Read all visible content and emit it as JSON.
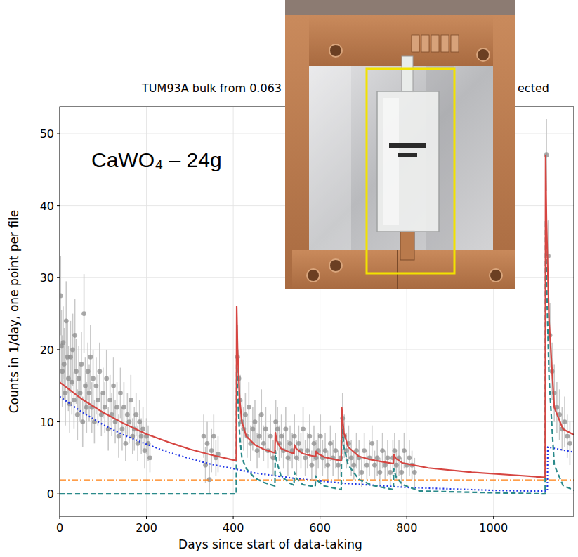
{
  "chart_data": {
    "type": "scatter",
    "title": "TUM93A bulk from 0.063",
    "annotations": [
      "ected",
      "CaWO₄ – 24g"
    ],
    "xlabel": "Days since start of data-taking",
    "ylabel": "Counts in 1/day, one point per file",
    "xlim": [
      0,
      1185
    ],
    "ylim": [
      -3.1,
      53.7
    ],
    "xticks": [
      0,
      200,
      400,
      600,
      800,
      1000
    ],
    "yticks": [
      0,
      10,
      20,
      30,
      40,
      50
    ],
    "grid": true,
    "series": [
      {
        "type": "scatter",
        "color": "#8c8c8c",
        "marker": "circle",
        "x": [
          2,
          4,
          6,
          8,
          10,
          13,
          15,
          18,
          20,
          23,
          25,
          28,
          30,
          33,
          35,
          38,
          41,
          44,
          47,
          50,
          53,
          56,
          59,
          62,
          65,
          68,
          71,
          74,
          77,
          80,
          84,
          88,
          92,
          96,
          100,
          104,
          108,
          112,
          116,
          120,
          124,
          128,
          132,
          136,
          140,
          144,
          148,
          152,
          156,
          160,
          164,
          168,
          172,
          176,
          180,
          184,
          188,
          192,
          196,
          200,
          204,
          208,
          332,
          336,
          340,
          345,
          350,
          355,
          360,
          365,
          410,
          413,
          416,
          420,
          424,
          428,
          432,
          436,
          440,
          445,
          450,
          455,
          460,
          465,
          470,
          475,
          480,
          486,
          492,
          498,
          502,
          506,
          511,
          516,
          521,
          526,
          531,
          536,
          541,
          546,
          551,
          556,
          561,
          566,
          571,
          576,
          581,
          586,
          591,
          596,
          601,
          606,
          612,
          618,
          624,
          630,
          636,
          642,
          648,
          652,
          656,
          661,
          666,
          672,
          678,
          684,
          690,
          696,
          702,
          708,
          714,
          720,
          726,
          732,
          738,
          744,
          750,
          756,
          762,
          768,
          772,
          776,
          782,
          788,
          794,
          800,
          806,
          812,
          818,
          1122,
          1126,
          1130,
          1135,
          1140,
          1146,
          1152,
          1158,
          1164,
          1170,
          1176
        ],
        "values": [
          27.5,
          20.5,
          17,
          21,
          18,
          14,
          24,
          19,
          16,
          12.5,
          19,
          15.5,
          20,
          13,
          22,
          17,
          11,
          16,
          14,
          18,
          10,
          25,
          15,
          12,
          17,
          14,
          19,
          12,
          16,
          10,
          15,
          13,
          17,
          11,
          14,
          12,
          16,
          9,
          13,
          11,
          15,
          10,
          12,
          8,
          14,
          9,
          12,
          7,
          11,
          10,
          13,
          8,
          9,
          11,
          7,
          10,
          8,
          9,
          6,
          8,
          7,
          5,
          8,
          4,
          7,
          2,
          6,
          8,
          5,
          5.5,
          19,
          16,
          13,
          10,
          9,
          11,
          8,
          12,
          7,
          9,
          10,
          6,
          8,
          11,
          7,
          9,
          6,
          8,
          5,
          10,
          9,
          7,
          8,
          6,
          9,
          5,
          7,
          6,
          8,
          5,
          7,
          6,
          9,
          5,
          6,
          8,
          4,
          7,
          5,
          6,
          8,
          5,
          6,
          4,
          7,
          5,
          6,
          4,
          5,
          10.5,
          8,
          6,
          7,
          5,
          4,
          6,
          5,
          3,
          6,
          4,
          5,
          7,
          4,
          5,
          3,
          6,
          4,
          5,
          3,
          5,
          6,
          4,
          5,
          3,
          6,
          4,
          5,
          4,
          3,
          47,
          33,
          22,
          17,
          14,
          12,
          11,
          9,
          10,
          8,
          7
        ],
        "errors": [
          5.5,
          5,
          5,
          5,
          5,
          4.5,
          5.5,
          5,
          4.5,
          4,
          5,
          4.5,
          5,
          4,
          5,
          4.5,
          3.5,
          4.5,
          4,
          4.5,
          3.5,
          5.5,
          4,
          3.5,
          4,
          4,
          4.5,
          3.5,
          4,
          3,
          4,
          3.5,
          4,
          3,
          3.5,
          3.5,
          4,
          3,
          3.5,
          3,
          4,
          3,
          3.5,
          3,
          3.5,
          3,
          3.5,
          2.5,
          3,
          3,
          3.5,
          2.5,
          3,
          3,
          2.5,
          3,
          2.5,
          3,
          2.5,
          2.5,
          2.5,
          2,
          3,
          2.5,
          3,
          2,
          3,
          3,
          2.5,
          2.5,
          4.5,
          4,
          3.5,
          3,
          3,
          3,
          3,
          3.5,
          2.5,
          3,
          3,
          2.5,
          3,
          3.5,
          2.5,
          3,
          2.5,
          3,
          2.5,
          3,
          3,
          2.5,
          3,
          2.5,
          3,
          2.5,
          2.5,
          2.5,
          3,
          2.5,
          2.5,
          2.5,
          3,
          2.5,
          2.5,
          3,
          2,
          2.5,
          2.5,
          2.5,
          3,
          2.5,
          2.5,
          2,
          2.5,
          2.5,
          2.5,
          2,
          2.5,
          3.5,
          3,
          2.5,
          2.5,
          2.5,
          2,
          2.5,
          2.5,
          2,
          2.5,
          2,
          2.5,
          2.5,
          2,
          2.5,
          2,
          2.5,
          2,
          2.5,
          2,
          2.5,
          2.5,
          2,
          2.5,
          2,
          2.5,
          2,
          2.5,
          2,
          2,
          5,
          5,
          4.5,
          4,
          4,
          3.5,
          3.5,
          3,
          3.5,
          3,
          3
        ]
      },
      {
        "type": "line",
        "color": "#1f35e6",
        "line_style": "dotted",
        "x": [
          0,
          50,
          100,
          150,
          200,
          250,
          300,
          350,
          400,
          450,
          500,
          550,
          600,
          650,
          700,
          750,
          800,
          850,
          900,
          950,
          1000,
          1050,
          1100,
          1124,
          1125,
          1150,
          1185
        ],
        "values": [
          13.5,
          11.4,
          9.6,
          8.1,
          6.9,
          5.8,
          4.9,
          4.1,
          3.5,
          2.9,
          2.5,
          2.1,
          1.8,
          1.5,
          1.3,
          1.1,
          0.9,
          0.8,
          0.7,
          0.6,
          0.5,
          0.45,
          0.4,
          0.4,
          6.5,
          6.2,
          5.8
        ]
      },
      {
        "type": "line",
        "color": "#ff7f0e",
        "line_style": "dashdot",
        "x": [
          0,
          1185
        ],
        "values": [
          1.9,
          1.9
        ]
      },
      {
        "type": "line",
        "color": "#2a8a8a",
        "line_style": "dashed",
        "x": [
          0,
          407,
          408,
          410,
          415,
          420,
          430,
          450,
          470,
          496,
          497,
          500,
          510,
          530,
          540,
          541,
          545,
          560,
          589,
          590,
          595,
          610,
          649,
          650,
          655,
          665,
          690,
          720,
          769,
          770,
          775,
          790,
          830,
          1119,
          1120,
          1122,
          1128,
          1140,
          1160,
          1185
        ],
        "values": [
          0,
          0,
          19,
          14,
          8,
          5,
          3.5,
          2.2,
          1.6,
          1.1,
          6,
          4.5,
          2.5,
          1.5,
          1.2,
          3,
          2.2,
          1.3,
          1,
          2.5,
          1.8,
          1.1,
          0.6,
          10.5,
          6.5,
          4,
          2,
          1.2,
          0.6,
          3.5,
          2.4,
          1.3,
          0.4,
          0,
          38,
          30,
          16,
          4,
          1.2,
          0.5
        ]
      },
      {
        "type": "line",
        "color": "#d64541",
        "line_style": "solid",
        "x": [
          0,
          50,
          100,
          150,
          200,
          250,
          300,
          350,
          400,
          407,
          408,
          410,
          415,
          420,
          430,
          450,
          470,
          490,
          496,
          497,
          500,
          510,
          530,
          540,
          541,
          545,
          560,
          580,
          590,
          591,
          595,
          610,
          640,
          649,
          650,
          655,
          665,
          690,
          720,
          760,
          769,
          770,
          775,
          790,
          850,
          950,
          1050,
          1119,
          1120,
          1122,
          1128,
          1140,
          1160,
          1185
        ],
        "values": [
          15.5,
          13.2,
          11.3,
          9.7,
          8.3,
          7.2,
          6.2,
          5.4,
          4.7,
          4.6,
          26,
          20,
          13,
          10,
          8,
          6.8,
          6.2,
          5.8,
          5.7,
          8.5,
          7.4,
          6.3,
          5.8,
          5.6,
          6.8,
          6.3,
          5.6,
          5.3,
          5.2,
          5.9,
          5.6,
          5.1,
          4.7,
          4.6,
          12,
          8.5,
          6.5,
          5.2,
          4.7,
          4.3,
          4.2,
          5.5,
          4.9,
          4.3,
          3.6,
          3.0,
          2.6,
          2.3,
          47,
          38,
          24,
          12,
          9,
          8.2
        ]
      }
    ]
  }
}
